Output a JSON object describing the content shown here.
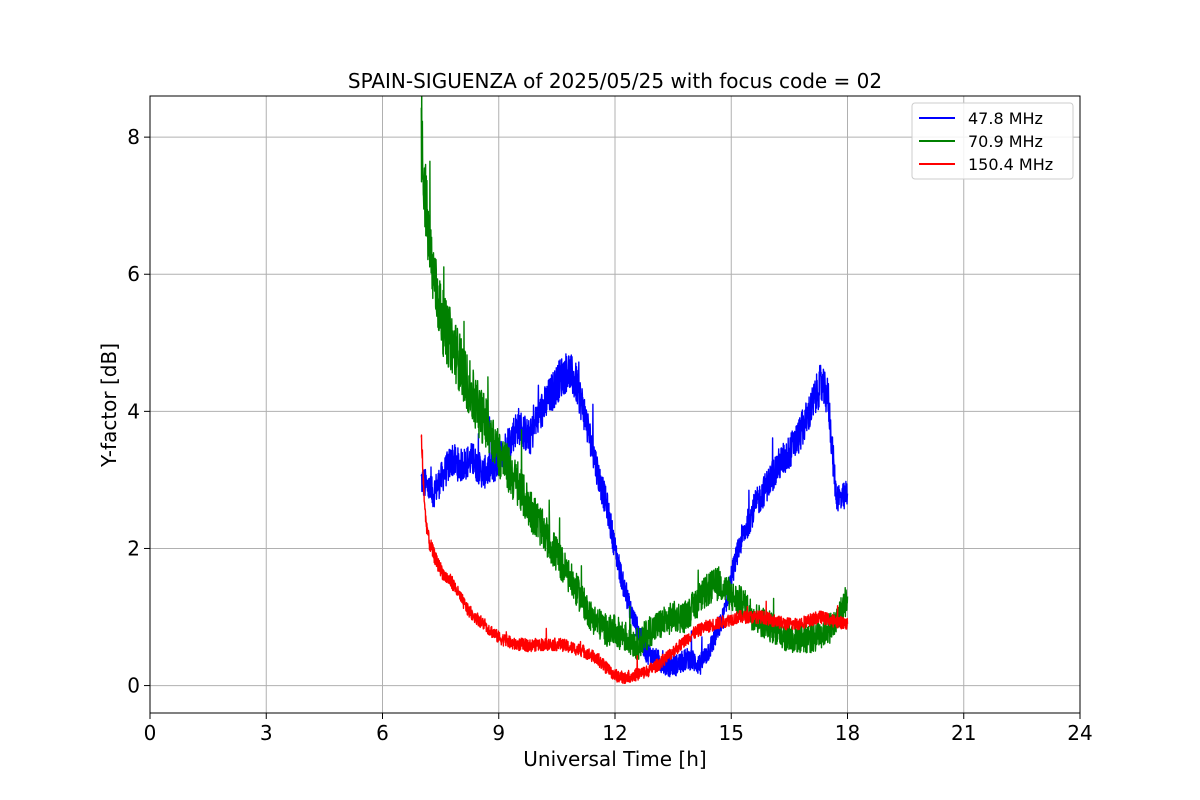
{
  "chart_data": {
    "type": "line",
    "title": "SPAIN-SIGUENZA of 2025/05/25 with focus code = 02",
    "xlabel": "Universal Time [h]",
    "ylabel": "Y-factor [dB]",
    "xlim": [
      0,
      24
    ],
    "ylim": [
      -0.4,
      8.6
    ],
    "xticks": [
      0,
      3,
      6,
      9,
      12,
      15,
      18,
      21,
      24
    ],
    "yticks": [
      0,
      2,
      4,
      6,
      8
    ],
    "grid": true,
    "legend_position": "top-right",
    "series": [
      {
        "name": " 47.8 MHz",
        "color": "#0000ff",
        "noise": 0.28,
        "points": [
          [
            7.0,
            3.0
          ],
          [
            7.3,
            2.8
          ],
          [
            7.6,
            3.1
          ],
          [
            7.8,
            3.3
          ],
          [
            8.0,
            3.2
          ],
          [
            8.3,
            3.3
          ],
          [
            8.6,
            3.1
          ],
          [
            8.9,
            3.2
          ],
          [
            9.2,
            3.5
          ],
          [
            9.5,
            3.8
          ],
          [
            9.8,
            3.6
          ],
          [
            10.0,
            3.9
          ],
          [
            10.3,
            4.2
          ],
          [
            10.6,
            4.5
          ],
          [
            10.8,
            4.6
          ],
          [
            11.0,
            4.4
          ],
          [
            11.2,
            4.0
          ],
          [
            11.4,
            3.5
          ],
          [
            11.6,
            3.0
          ],
          [
            11.8,
            2.6
          ],
          [
            12.0,
            2.0
          ],
          [
            12.2,
            1.5
          ],
          [
            12.4,
            1.1
          ],
          [
            12.6,
            0.8
          ],
          [
            12.8,
            0.5
          ],
          [
            13.0,
            0.4
          ],
          [
            13.3,
            0.3
          ],
          [
            13.6,
            0.3
          ],
          [
            13.9,
            0.4
          ],
          [
            14.2,
            0.3
          ],
          [
            14.5,
            0.6
          ],
          [
            14.8,
            1.0
          ],
          [
            15.0,
            1.6
          ],
          [
            15.3,
            2.2
          ],
          [
            15.6,
            2.6
          ],
          [
            15.9,
            2.9
          ],
          [
            16.2,
            3.2
          ],
          [
            16.5,
            3.4
          ],
          [
            16.8,
            3.7
          ],
          [
            17.1,
            4.1
          ],
          [
            17.3,
            4.4
          ],
          [
            17.5,
            4.2
          ],
          [
            17.6,
            3.5
          ],
          [
            17.7,
            2.8
          ],
          [
            17.85,
            2.7
          ],
          [
            18.0,
            2.8
          ]
        ]
      },
      {
        "name": " 70.9 MHz",
        "color": "#008000",
        "noise": 0.4,
        "points": [
          [
            7.0,
            7.9
          ],
          [
            7.1,
            7.2
          ],
          [
            7.2,
            6.4
          ],
          [
            7.4,
            5.7
          ],
          [
            7.6,
            5.2
          ],
          [
            7.8,
            5.0
          ],
          [
            8.0,
            4.7
          ],
          [
            8.2,
            4.4
          ],
          [
            8.4,
            4.1
          ],
          [
            8.6,
            3.9
          ],
          [
            8.8,
            3.7
          ],
          [
            9.0,
            3.4
          ],
          [
            9.2,
            3.2
          ],
          [
            9.4,
            3.0
          ],
          [
            9.6,
            2.8
          ],
          [
            9.8,
            2.6
          ],
          [
            10.0,
            2.4
          ],
          [
            10.2,
            2.2
          ],
          [
            10.4,
            2.0
          ],
          [
            10.6,
            1.8
          ],
          [
            10.8,
            1.6
          ],
          [
            11.0,
            1.4
          ],
          [
            11.2,
            1.2
          ],
          [
            11.4,
            1.0
          ],
          [
            11.6,
            0.9
          ],
          [
            11.8,
            0.8
          ],
          [
            12.0,
            0.8
          ],
          [
            12.3,
            0.7
          ],
          [
            12.6,
            0.6
          ],
          [
            12.9,
            0.8
          ],
          [
            13.2,
            0.9
          ],
          [
            13.5,
            1.0
          ],
          [
            13.8,
            1.0
          ],
          [
            14.1,
            1.2
          ],
          [
            14.4,
            1.4
          ],
          [
            14.7,
            1.5
          ],
          [
            15.0,
            1.3
          ],
          [
            15.3,
            1.2
          ],
          [
            15.6,
            1.0
          ],
          [
            15.9,
            0.9
          ],
          [
            16.2,
            0.8
          ],
          [
            16.5,
            0.7
          ],
          [
            16.8,
            0.7
          ],
          [
            17.1,
            0.7
          ],
          [
            17.4,
            0.8
          ],
          [
            17.7,
            0.9
          ],
          [
            18.0,
            1.3
          ]
        ]
      },
      {
        "name": " 150.4 MHz",
        "color": "#ff0000",
        "noise": 0.16,
        "points": [
          [
            7.0,
            3.6
          ],
          [
            7.1,
            2.5
          ],
          [
            7.2,
            2.1
          ],
          [
            7.4,
            1.8
          ],
          [
            7.6,
            1.6
          ],
          [
            7.8,
            1.5
          ],
          [
            8.0,
            1.3
          ],
          [
            8.2,
            1.1
          ],
          [
            8.4,
            1.0
          ],
          [
            8.6,
            0.9
          ],
          [
            8.8,
            0.8
          ],
          [
            9.0,
            0.7
          ],
          [
            9.2,
            0.65
          ],
          [
            9.4,
            0.6
          ],
          [
            9.6,
            0.6
          ],
          [
            9.8,
            0.58
          ],
          [
            10.0,
            0.6
          ],
          [
            10.3,
            0.6
          ],
          [
            10.6,
            0.6
          ],
          [
            10.9,
            0.55
          ],
          [
            11.2,
            0.5
          ],
          [
            11.5,
            0.4
          ],
          [
            11.8,
            0.25
          ],
          [
            12.0,
            0.15
          ],
          [
            12.2,
            0.12
          ],
          [
            12.5,
            0.15
          ],
          [
            12.8,
            0.2
          ],
          [
            13.1,
            0.3
          ],
          [
            13.4,
            0.45
          ],
          [
            13.7,
            0.6
          ],
          [
            14.0,
            0.75
          ],
          [
            14.3,
            0.85
          ],
          [
            14.6,
            0.9
          ],
          [
            14.9,
            0.95
          ],
          [
            15.2,
            1.0
          ],
          [
            15.5,
            1.0
          ],
          [
            15.8,
            1.0
          ],
          [
            16.1,
            0.95
          ],
          [
            16.4,
            0.9
          ],
          [
            16.7,
            0.9
          ],
          [
            17.0,
            0.95
          ],
          [
            17.3,
            1.0
          ],
          [
            17.6,
            0.95
          ],
          [
            18.0,
            0.9
          ]
        ]
      }
    ]
  }
}
